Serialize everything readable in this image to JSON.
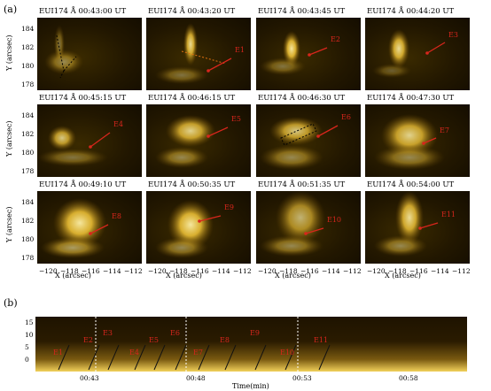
{
  "panel_a_label": "(a)",
  "panel_b_label": "(b)",
  "panels": [
    {
      "caption": "EUI174 Å     00:43:00 UT",
      "annotation": ""
    },
    {
      "caption": "EUI174 Å     00:43:20 UT",
      "annotation": "E1"
    },
    {
      "caption": "EUI174 Å     00:43:45 UT",
      "annotation": "E2"
    },
    {
      "caption": "EUI174 Å     00:44:20 UT",
      "annotation": "E3"
    },
    {
      "caption": "EUI174 Å     00:45:15 UT",
      "annotation": "E4"
    },
    {
      "caption": "EUI174 Å     00:46:15 UT",
      "annotation": "E5"
    },
    {
      "caption": "EUI174 Å     00:46:30 UT",
      "annotation": "E6"
    },
    {
      "caption": "EUI174 Å     00:47:30 UT",
      "annotation": "E7"
    },
    {
      "caption": "EUI174 Å     00:49:10 UT",
      "annotation": "E8"
    },
    {
      "caption": "EUI174 Å     00:50:35 UT",
      "annotation": "E9"
    },
    {
      "caption": "EUI174 Å     00:51:35 UT",
      "annotation": "E10"
    },
    {
      "caption": "EUI174 Å     00:54:00 UT",
      "annotation": "E11"
    }
  ],
  "y_ticks": [
    "184",
    "182",
    "180",
    "178"
  ],
  "y_axis_label": "Y (arcsec)",
  "x_ticks": [
    "−120",
    "−118",
    "−116",
    "−114",
    "−112"
  ],
  "x_axis_label": "X (arcsec)",
  "panel_b": {
    "y_ticks": [
      "15",
      "10",
      "5",
      "0"
    ],
    "x_ticks": [
      "00:43",
      "00:48",
      "00:53",
      "00:58"
    ],
    "x_axis_label": "Time(min)",
    "event_labels": [
      "E1",
      "E2",
      "E3",
      "E4",
      "E5",
      "E6",
      "E7",
      "E8",
      "E9",
      "E10",
      "E11"
    ]
  },
  "colors": {
    "annotation": "#d8261c",
    "plasma": "#ffcf3a",
    "background": "#1a1100"
  }
}
